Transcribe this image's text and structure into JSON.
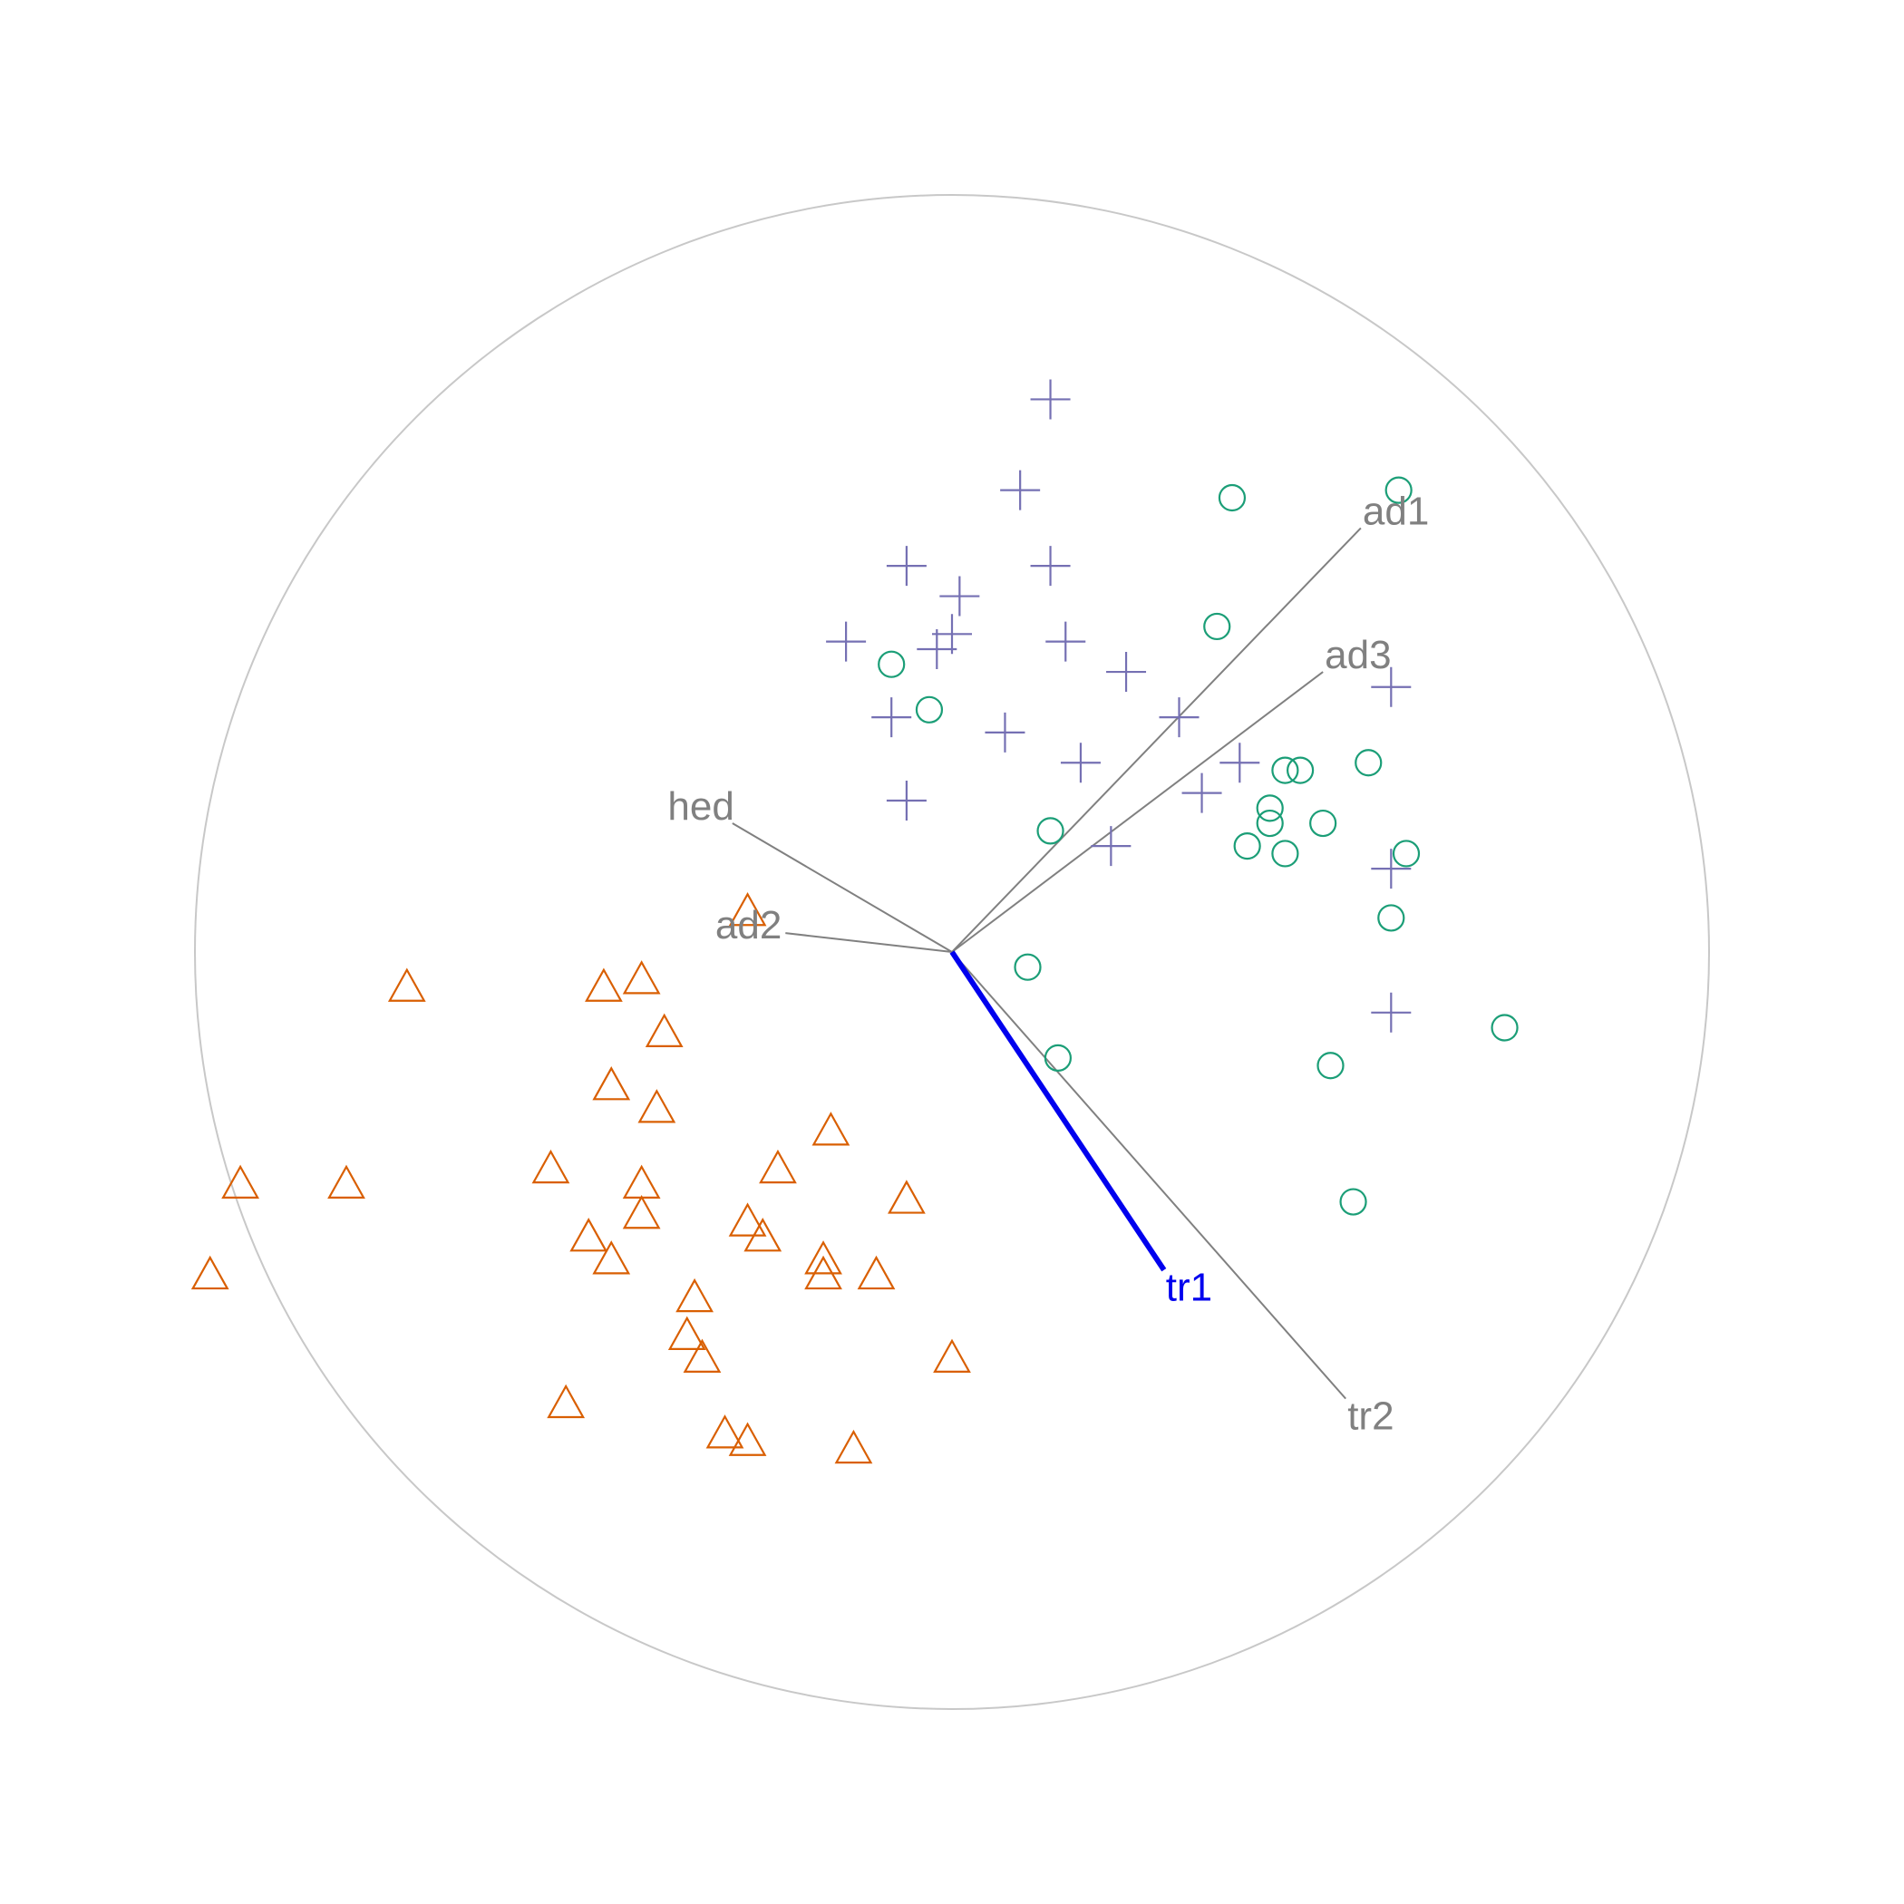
{
  "chart_data": {
    "type": "scatter",
    "title": "",
    "xlabel": "",
    "ylabel": "",
    "xlim": [
      -1,
      1
    ],
    "ylim": [
      -1,
      1
    ],
    "grid": false,
    "legend": "none",
    "unit_circle": true,
    "axes": [
      {
        "label": "ad1",
        "x": 0.54,
        "y": 0.56,
        "color": "#808080",
        "highlighted": false
      },
      {
        "label": "ad3",
        "x": 0.49,
        "y": 0.37,
        "color": "#808080",
        "highlighted": false
      },
      {
        "label": "hed",
        "x": -0.29,
        "y": 0.17,
        "color": "#808080",
        "highlighted": false
      },
      {
        "label": "ad2",
        "x": -0.22,
        "y": 0.025,
        "color": "#808080",
        "highlighted": false
      },
      {
        "label": "tr1",
        "x": 0.28,
        "y": -0.42,
        "color": "#0000EE",
        "highlighted": true
      },
      {
        "label": "tr2",
        "x": 0.52,
        "y": -0.59,
        "color": "#808080",
        "highlighted": false
      }
    ],
    "series": [
      {
        "marker": "plus",
        "color": "#7570B3",
        "points": [
          [
            0.13,
            0.73
          ],
          [
            0.09,
            0.61
          ],
          [
            -0.06,
            0.51
          ],
          [
            0.13,
            0.51
          ],
          [
            0.01,
            0.47
          ],
          [
            0.0,
            0.42
          ],
          [
            -0.02,
            0.4
          ],
          [
            -0.14,
            0.41
          ],
          [
            0.15,
            0.41
          ],
          [
            0.23,
            0.37
          ],
          [
            -0.08,
            0.31
          ],
          [
            0.07,
            0.29
          ],
          [
            0.3,
            0.31
          ],
          [
            0.17,
            0.25
          ],
          [
            0.38,
            0.25
          ],
          [
            0.33,
            0.21
          ],
          [
            -0.06,
            0.2
          ],
          [
            0.21,
            0.14
          ],
          [
            0.58,
            0.35
          ],
          [
            0.58,
            0.11
          ],
          [
            0.58,
            -0.08
          ]
        ]
      },
      {
        "marker": "circle",
        "color": "#1B9E77",
        "points": [
          [
            0.37,
            0.6
          ],
          [
            0.59,
            0.61
          ],
          [
            0.35,
            0.43
          ],
          [
            -0.08,
            0.38
          ],
          [
            -0.03,
            0.32
          ],
          [
            0.44,
            0.24
          ],
          [
            0.46,
            0.24
          ],
          [
            0.55,
            0.25
          ],
          [
            0.42,
            0.19
          ],
          [
            0.42,
            0.17
          ],
          [
            0.49,
            0.17
          ],
          [
            0.13,
            0.16
          ],
          [
            0.39,
            0.14
          ],
          [
            0.44,
            0.13
          ],
          [
            0.6,
            0.13
          ],
          [
            0.58,
            0.045
          ],
          [
            0.1,
            -0.02
          ],
          [
            0.73,
            -0.1
          ],
          [
            0.14,
            -0.14
          ],
          [
            0.5,
            -0.15
          ],
          [
            0.53,
            -0.33
          ]
        ]
      },
      {
        "marker": "triangle",
        "color": "#D95F02",
        "points": [
          [
            -0.27,
            0.05
          ],
          [
            -0.72,
            -0.05
          ],
          [
            -0.46,
            -0.05
          ],
          [
            -0.41,
            -0.04
          ],
          [
            -0.38,
            -0.11
          ],
          [
            -0.45,
            -0.18
          ],
          [
            -0.39,
            -0.21
          ],
          [
            -0.16,
            -0.24
          ],
          [
            -0.94,
            -0.31
          ],
          [
            -0.8,
            -0.31
          ],
          [
            -0.53,
            -0.29
          ],
          [
            -0.41,
            -0.31
          ],
          [
            -0.23,
            -0.29
          ],
          [
            -0.06,
            -0.33
          ],
          [
            -0.41,
            -0.35
          ],
          [
            -0.27,
            -0.36
          ],
          [
            -0.25,
            -0.38
          ],
          [
            -0.48,
            -0.38
          ],
          [
            -0.45,
            -0.41
          ],
          [
            -0.17,
            -0.41
          ],
          [
            -0.98,
            -0.43
          ],
          [
            -0.17,
            -0.43
          ],
          [
            -0.1,
            -0.43
          ],
          [
            -0.34,
            -0.46
          ],
          [
            -0.35,
            -0.51
          ],
          [
            -0.33,
            -0.54
          ],
          [
            0.0,
            -0.54
          ],
          [
            -0.51,
            -0.6
          ],
          [
            -0.3,
            -0.64
          ],
          [
            -0.27,
            -0.65
          ],
          [
            -0.13,
            -0.66
          ]
        ]
      }
    ]
  }
}
